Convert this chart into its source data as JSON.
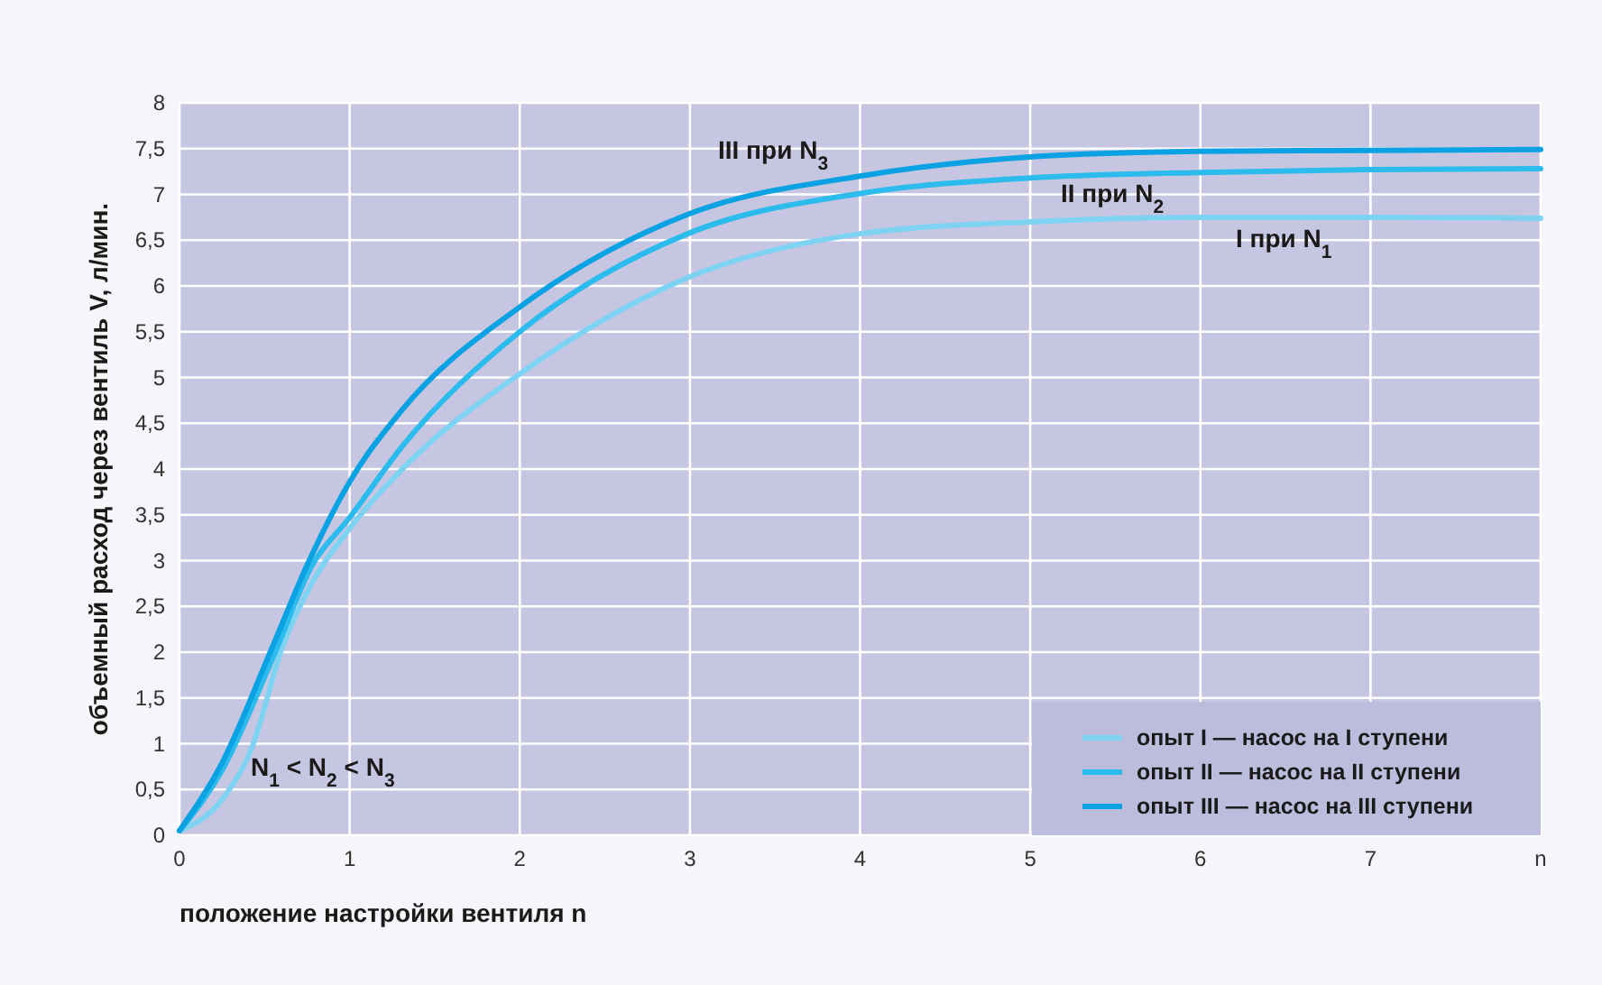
{
  "chart_data": {
    "type": "line",
    "xlabel": "положение настройки вентиля n",
    "ylabel": "объемный расход через вентиль V, л/мин.",
    "xlim": [
      0,
      8
    ],
    "xticks": [
      0,
      1,
      2,
      3,
      4,
      5,
      6,
      7,
      {
        "value": 8,
        "label": "n"
      }
    ],
    "ylim": [
      0,
      8
    ],
    "yticks": [
      0,
      {
        "value": 0.5,
        "label": "0,5"
      },
      1,
      {
        "value": 1.5,
        "label": "1,5"
      },
      2,
      {
        "value": 2.5,
        "label": "2,5"
      },
      3,
      {
        "value": 3.5,
        "label": "3,5"
      },
      4,
      {
        "value": 4.5,
        "label": "4,5"
      },
      5,
      {
        "value": 5.5,
        "label": "5,5"
      },
      6,
      {
        "value": 6.5,
        "label": "6,5"
      },
      7,
      {
        "value": 7.5,
        "label": "7,5"
      },
      8
    ],
    "grid": true,
    "legend": "bottom right",
    "marker": "none",
    "line_style": "solid",
    "series": [
      {
        "name": "опыт I — насос на I ступени",
        "color": "#7fd3f2",
        "x": [
          0,
          0.25,
          0.43,
          0.6,
          0.78,
          1,
          1.31,
          2,
          3,
          4,
          5,
          6,
          7,
          8
        ],
        "values": [
          0.05,
          0.39,
          0.98,
          2.03,
          2.76,
          3.35,
          4.0,
          5.04,
          6.1,
          6.57,
          6.7,
          6.75,
          6.75,
          6.74
        ]
      },
      {
        "name": "опыт II — насос на II ступени",
        "color": "#2bbbec",
        "x": [
          0,
          0.25,
          0.54,
          0.78,
          1,
          1.31,
          2,
          3,
          4,
          5,
          6,
          7,
          8
        ],
        "values": [
          0.05,
          0.71,
          1.9,
          2.95,
          3.47,
          4.25,
          5.5,
          6.58,
          7.01,
          7.18,
          7.24,
          7.27,
          7.28
        ]
      },
      {
        "name": "опыт III — насос на III ступени",
        "color": "#0aa2e2",
        "x": [
          0,
          0.25,
          0.54,
          0.75,
          1,
          1.31,
          2,
          3,
          4,
          5,
          6,
          7,
          8
        ],
        "values": [
          0.05,
          0.79,
          2.03,
          2.95,
          3.86,
          4.65,
          5.77,
          6.79,
          7.2,
          7.41,
          7.47,
          7.48,
          7.49
        ]
      }
    ],
    "annotations": [
      "III при N$_{3}$",
      "II при N$_{2}$",
      "I при N$_{1}$",
      "N$_{1}$ < N$_{2}$ < N$_{3}$"
    ]
  }
}
